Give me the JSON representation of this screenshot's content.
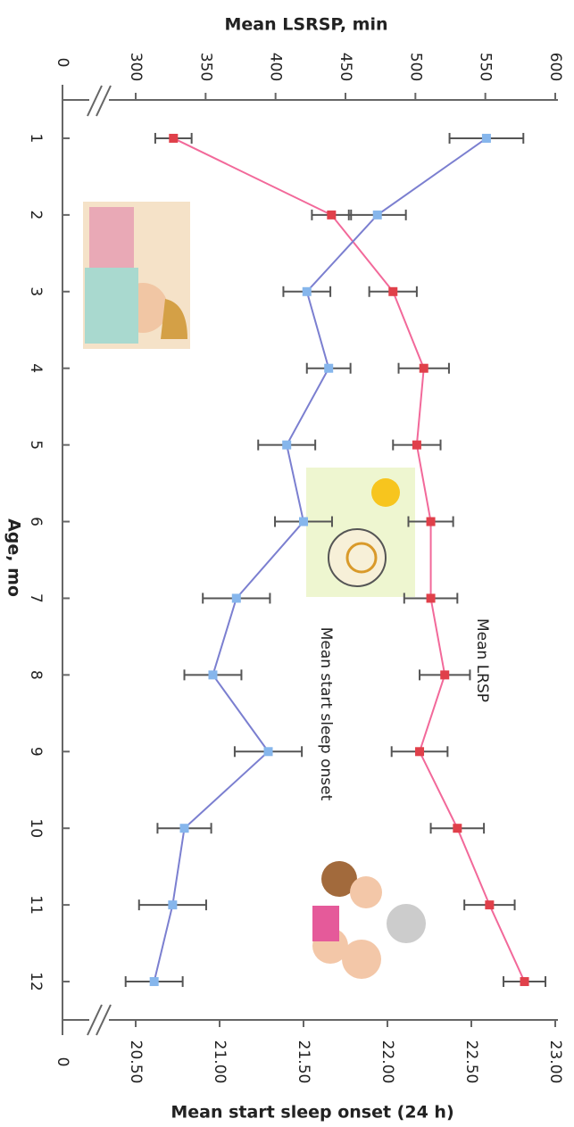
{
  "chart_data": {
    "type": "line",
    "x_label": "Age, mo",
    "y_label": "Mean LSRSP, min",
    "y2_label": "Mean start sleep onset (24 h)",
    "x": [
      1,
      2,
      3,
      4,
      5,
      6,
      7,
      8,
      9,
      10,
      11,
      12
    ],
    "xlim": [
      0.5,
      12.5
    ],
    "xticks": [
      1,
      2,
      3,
      4,
      5,
      6,
      7,
      8,
      9,
      10,
      11,
      12
    ],
    "ylim": [
      300,
      600
    ],
    "yticks": [
      300,
      350,
      400,
      450,
      500,
      550,
      600
    ],
    "y_break_label": "0",
    "y2lim": [
      20.5,
      23
    ],
    "y2ticks": [
      {
        "value": 20.5,
        "label": "20.50"
      },
      {
        "value": 21,
        "label": "21.00"
      },
      {
        "value": 21.5,
        "label": "21.50"
      },
      {
        "value": 22,
        "label": "22.00"
      },
      {
        "value": 22.5,
        "label": "22.50"
      },
      {
        "value": 23,
        "label": "23.00"
      }
    ],
    "y2_break_label": "0",
    "series": [
      {
        "name": "Mean LRSP",
        "color": "#f2699a",
        "marker_color": "#e0404a",
        "values": [
          327,
          440,
          484,
          506,
          501,
          511,
          511,
          521,
          503,
          530,
          553,
          578
        ],
        "errors": [
          13,
          14,
          17,
          18,
          17,
          16,
          19,
          18,
          20,
          19,
          18,
          15
        ]
      },
      {
        "name": "Mean start sleep onset",
        "color": "#7b7fd0",
        "marker_color": "#86b6ec",
        "axis": "y2",
        "values": [
          22.59,
          21.94,
          21.52,
          21.65,
          21.4,
          21.5,
          21.1,
          20.96,
          21.29,
          20.79,
          20.72,
          20.61
        ],
        "errors": [
          0.22,
          0.17,
          0.14,
          0.13,
          0.17,
          0.17,
          0.2,
          0.17,
          0.2,
          0.16,
          0.2,
          0.17
        ]
      }
    ]
  }
}
